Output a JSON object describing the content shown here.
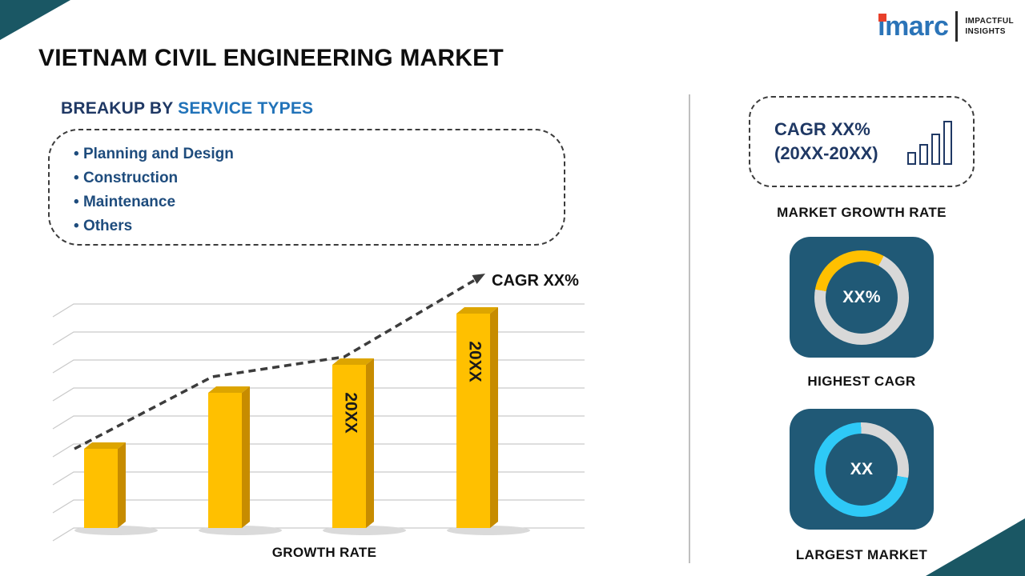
{
  "page": {
    "title": "VIETNAM CIVIL ENGINEERING MARKET"
  },
  "logo": {
    "brand": "imarc",
    "tagline_line1": "IMPACTFUL",
    "tagline_line2": "INSIGHTS"
  },
  "breakup": {
    "heading_prefix": "BREAKUP BY ",
    "heading_highlight": "SERVICE TYPES",
    "items": [
      "Planning and Design",
      "Construction",
      "Maintenance",
      "Others"
    ]
  },
  "chart_data": {
    "type": "bar",
    "title": "",
    "categories": [
      "",
      "",
      "20XX",
      "20XX"
    ],
    "values": [
      37,
      63,
      76,
      100
    ],
    "bar_labels": [
      "",
      "",
      "20XX",
      "20XX"
    ],
    "xlabel": "GROWTH RATE",
    "ylabel": "",
    "cagr_label": "CAGR XX%",
    "trend": "rising dashed arrow across bar tops ending in arrowhead",
    "grid": "horizontal gridlines, pseudo-3D perspective, no axis tick values",
    "legend": "none"
  },
  "sidebar": {
    "cagr_box": {
      "line1": "CAGR XX%",
      "line2": "(20XX-20XX)",
      "icon": "ascending-bar-chart-icon"
    },
    "market_growth_rate_label": "MARKET GROWTH RATE",
    "highest_cagr": {
      "value": "XX%",
      "label": "HIGHEST CAGR",
      "donut": {
        "start_deg": 280,
        "percent": 30,
        "color": "#FFC000",
        "track": "#D8D8D8"
      }
    },
    "largest_market": {
      "value": "XX",
      "label": "LARGEST MARKET",
      "donut": {
        "start_deg": 100,
        "percent": 72,
        "color": "#2EC9F7",
        "track": "#D8D8D8"
      }
    }
  },
  "colors": {
    "corner_teal": "#1A5764",
    "navy": "#1F3864",
    "blue": "#2173B9",
    "service_item_blue": "#1E4C7D",
    "tile_bg": "#205976",
    "bar_front": "#FFC000",
    "bar_side": "#C78C00",
    "bar_top": "#DDA500",
    "logo_blue": "#2B74B8",
    "logo_red": "#E8402A"
  }
}
